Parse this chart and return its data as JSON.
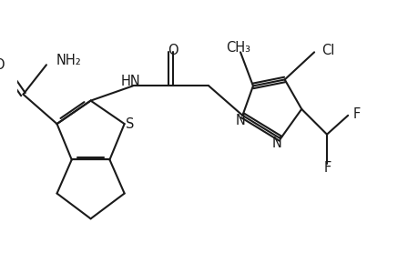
{
  "bg_color": "#ffffff",
  "line_color": "#1a1a1a",
  "line_width": 1.5,
  "font_size": 10.5,
  "xlim": [
    0.0,
    9.5
  ],
  "ylim": [
    0.2,
    6.5
  ],
  "figsize": [
    4.6,
    3.0
  ],
  "dpi": 100
}
